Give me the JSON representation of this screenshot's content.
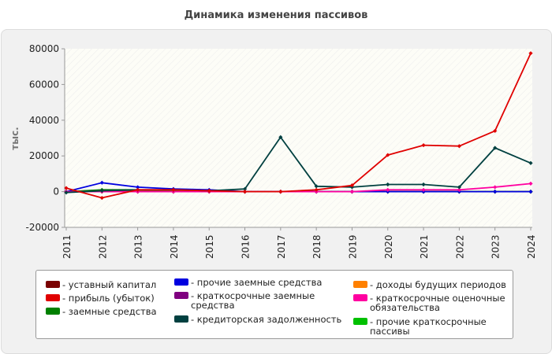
{
  "chart_data": {
    "type": "line",
    "title": "Динамика изменения пассивов",
    "ylabel": "тыс.",
    "xlabel": "",
    "ylim": [
      -20000,
      80000
    ],
    "yticks": [
      -20000,
      0,
      20000,
      40000,
      60000,
      80000
    ],
    "ytick_labels": [
      "-20000",
      "0",
      "20000",
      "40000",
      "60000",
      "80000"
    ],
    "categories": [
      "2011",
      "2012",
      "2013",
      "2014",
      "2015",
      "2016",
      "2017",
      "2018",
      "2019",
      "2020",
      "2021",
      "2022",
      "2023",
      "2024"
    ],
    "grid": false,
    "legend_position": "bottom",
    "series": [
      {
        "name": "уставный капитал",
        "color": "#7a0000",
        "values": [
          0,
          0,
          0,
          0,
          0,
          0,
          0,
          0,
          0,
          0,
          0,
          0,
          0,
          0
        ]
      },
      {
        "name": "прибыль (убыток)",
        "color": "#e00000",
        "values": [
          2000,
          -3500,
          1000,
          1000,
          500,
          0,
          0,
          1000,
          3500,
          20500,
          26000,
          25500,
          34000,
          77500
        ]
      },
      {
        "name": "заемные средства",
        "color": "#008000",
        "values": [
          0,
          1000,
          1000,
          500,
          500,
          0,
          0,
          0,
          0,
          0,
          0,
          0,
          0,
          0
        ]
      },
      {
        "name": "прочие заемные средства",
        "color": "#0000e0",
        "values": [
          0,
          5000,
          2500,
          1500,
          1000,
          0,
          0,
          0,
          0,
          0,
          0,
          0,
          0,
          0
        ]
      },
      {
        "name": "краткосрочные заемные средства",
        "color": "#800080",
        "values": [
          0,
          0,
          0,
          0,
          0,
          0,
          0,
          0,
          0,
          0,
          0,
          0,
          0,
          0
        ]
      },
      {
        "name": "кредиторская задолженность",
        "color": "#004040",
        "values": [
          -500,
          500,
          1000,
          1000,
          500,
          1500,
          30500,
          3000,
          2500,
          4000,
          4000,
          2500,
          24500,
          16000
        ]
      },
      {
        "name": "доходы будущих периодов",
        "color": "#ff8000",
        "values": [
          0,
          0,
          0,
          0,
          0,
          0,
          0,
          0,
          0,
          0,
          0,
          0,
          0,
          0
        ]
      },
      {
        "name": "краткосрочные оценочные обязательства",
        "color": "#ff00a0",
        "values": [
          0,
          0,
          0,
          0,
          0,
          0,
          0,
          0,
          0,
          1000,
          1000,
          1000,
          2500,
          4500
        ]
      },
      {
        "name": "прочие краткосрочные пассивы",
        "color": "#00c000",
        "values": [
          0,
          0,
          0,
          0,
          0,
          0,
          0,
          0,
          0,
          0,
          0,
          0,
          0,
          0
        ]
      }
    ]
  },
  "legend": {
    "items": [
      {
        "label": "- уставный капитал",
        "color": "#7a0000"
      },
      {
        "label": "- прибыль (убыток)",
        "color": "#e00000"
      },
      {
        "label": "- заемные средства",
        "color": "#008000"
      },
      {
        "label": "- прочие заемные средства",
        "color": "#0000e0"
      },
      {
        "label": "- краткосрочные заемные средства",
        "color": "#800080"
      },
      {
        "label": "- кредиторская задолженность",
        "color": "#004040"
      },
      {
        "label": "- доходы будущих периодов",
        "color": "#ff8000"
      },
      {
        "label": "- краткосрочные оценочные обязательства",
        "color": "#ff00a0"
      },
      {
        "label": "- прочие краткосрочные пассивы",
        "color": "#00c000"
      }
    ]
  }
}
